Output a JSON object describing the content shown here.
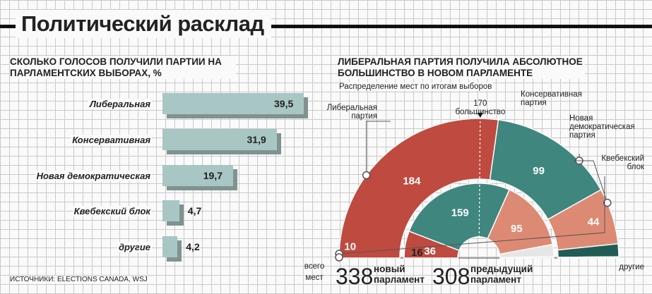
{
  "title": "Политический расклад",
  "source": "ИСТОЧНИКИ: ELECTIONS CANADA, WSJ",
  "chart_data": [
    {
      "type": "bar",
      "title": "СКОЛЬКО ГОЛОСОВ ПОЛУЧИЛИ ПАРТИИ НА ПАРЛАМЕНТСКИХ ВЫБОРАХ, %",
      "categories": [
        "Либеральная",
        "Консервативная",
        "Новая демократическая",
        "Квебекский блок",
        "другие"
      ],
      "values": [
        39.5,
        31.9,
        19.7,
        4.7,
        4.2
      ],
      "value_labels": [
        "39,5",
        "31,9",
        "19,7",
        "4,7",
        "4,2"
      ],
      "bar_color": "#a8c6c4"
    },
    {
      "type": "pie",
      "title": "ЛИБЕРАЛЬНАЯ ПАРТИЯ ПОЛУЧИЛА АБСОЛЮТНОЕ БОЛЬШИНСТВО В НОВОМ ПАРЛАМЕНТЕ",
      "subtitle": "Распределение мест по итогам выборов",
      "majority_label": "170 большинство",
      "majority_value": 170,
      "rings": [
        {
          "name": "новый парламент",
          "total": 338,
          "total_label": "338",
          "values": [
            184,
            99,
            44,
            10,
            1
          ],
          "value_labels": [
            "184",
            "99",
            "44",
            "10",
            ""
          ],
          "colors": [
            "#bf4a3f",
            "#3f867e",
            "#dd8a74",
            "#1f5d55",
            "#d6d6d6"
          ]
        },
        {
          "name": "предыдущий парламент",
          "total": 308,
          "total_label": "308",
          "values": [
            36,
            159,
            95,
            16,
            2
          ],
          "value_labels": [
            "36",
            "159",
            "95",
            "16",
            ""
          ],
          "colors": [
            "#bf4a3f",
            "#3f867e",
            "#dd8a74",
            "#e6e6e6",
            "#d6d6d6"
          ]
        }
      ],
      "legend": [
        {
          "name": "Либеральная партия",
          "lines": [
            "Либеральная",
            "партия"
          ]
        },
        {
          "name": "Консервативная партия",
          "lines": [
            "Консервативная",
            "партия"
          ]
        },
        {
          "name": "Новая демократическая партия",
          "lines": [
            "Новая",
            "демократическая",
            "партия"
          ]
        },
        {
          "name": "Квебекский блок",
          "lines": [
            "Квебекский",
            "блок"
          ]
        },
        {
          "name": "другие",
          "lines": [
            "другие"
          ]
        }
      ],
      "total_caption": [
        "всего",
        "мест"
      ]
    }
  ]
}
